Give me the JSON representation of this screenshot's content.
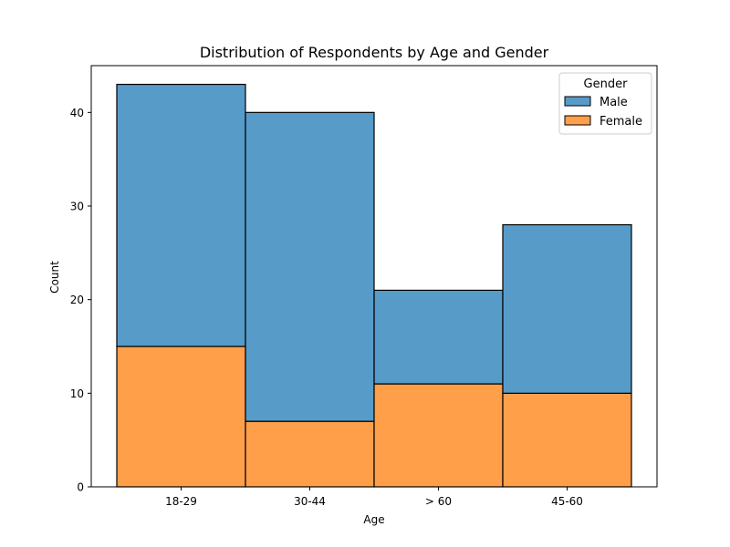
{
  "chart_data": {
    "type": "bar",
    "stacked": true,
    "title": "Distribution of Respondents by Age and Gender",
    "xlabel": "Age",
    "ylabel": "Count",
    "categories": [
      "18-29",
      "30-44",
      "> 60",
      "45-60"
    ],
    "series": [
      {
        "name": "Female",
        "values": [
          15,
          7,
          11,
          10
        ],
        "color": "#ff9f4a"
      },
      {
        "name": "Male",
        "values": [
          28,
          33,
          10,
          18
        ],
        "color": "#579bc9"
      }
    ],
    "ylim": [
      0,
      45
    ],
    "yticks": [
      "0",
      "10",
      "20",
      "30",
      "40"
    ],
    "legend": {
      "title": "Gender",
      "entries": [
        "Male",
        "Female"
      ],
      "placement": "top-right"
    },
    "grid": false
  }
}
